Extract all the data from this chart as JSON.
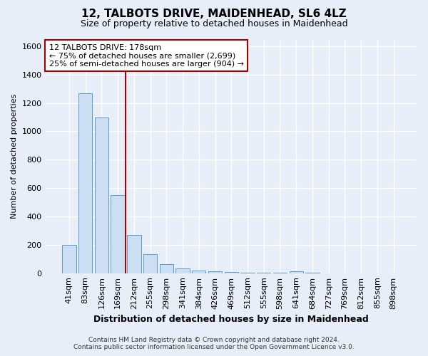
{
  "title": "12, TALBOTS DRIVE, MAIDENHEAD, SL6 4LZ",
  "subtitle": "Size of property relative to detached houses in Maidenhead",
  "xlabel": "Distribution of detached houses by size in Maidenhead",
  "ylabel": "Number of detached properties",
  "footer_line1": "Contains HM Land Registry data © Crown copyright and database right 2024.",
  "footer_line2": "Contains public sector information licensed under the Open Government Licence v3.0.",
  "bar_labels": [
    "41sqm",
    "83sqm",
    "126sqm",
    "169sqm",
    "212sqm",
    "255sqm",
    "298sqm",
    "341sqm",
    "384sqm",
    "426sqm",
    "469sqm",
    "512sqm",
    "555sqm",
    "598sqm",
    "641sqm",
    "684sqm",
    "727sqm",
    "769sqm",
    "812sqm",
    "855sqm",
    "898sqm"
  ],
  "bar_values": [
    197,
    1270,
    1100,
    550,
    270,
    135,
    62,
    33,
    18,
    12,
    8,
    5,
    3,
    2,
    14,
    2,
    0,
    0,
    0,
    0,
    0
  ],
  "bar_color": "#ccdff2",
  "bar_edge_color": "#5b9bd5",
  "annotation_line1": "12 TALBOTS DRIVE: 178sqm",
  "annotation_line2": "← 75% of detached houses are smaller (2,699)",
  "annotation_line3": "25% of semi-detached houses are larger (904) →",
  "red_line_x": 3.5,
  "ylim": [
    0,
    1650
  ],
  "yticks": [
    0,
    200,
    400,
    600,
    800,
    1000,
    1200,
    1400,
    1600
  ],
  "background_color": "#e8eef8",
  "grid_color": "#ffffff",
  "annotation_box_color": "#ffffff",
  "annotation_box_edge": "#aa0000",
  "red_line_color": "#aa0000",
  "title_fontsize": 11,
  "subtitle_fontsize": 9,
  "tick_fontsize": 8,
  "ylabel_fontsize": 8,
  "xlabel_fontsize": 9,
  "footer_fontsize": 6.5,
  "ann_fontsize": 8
}
